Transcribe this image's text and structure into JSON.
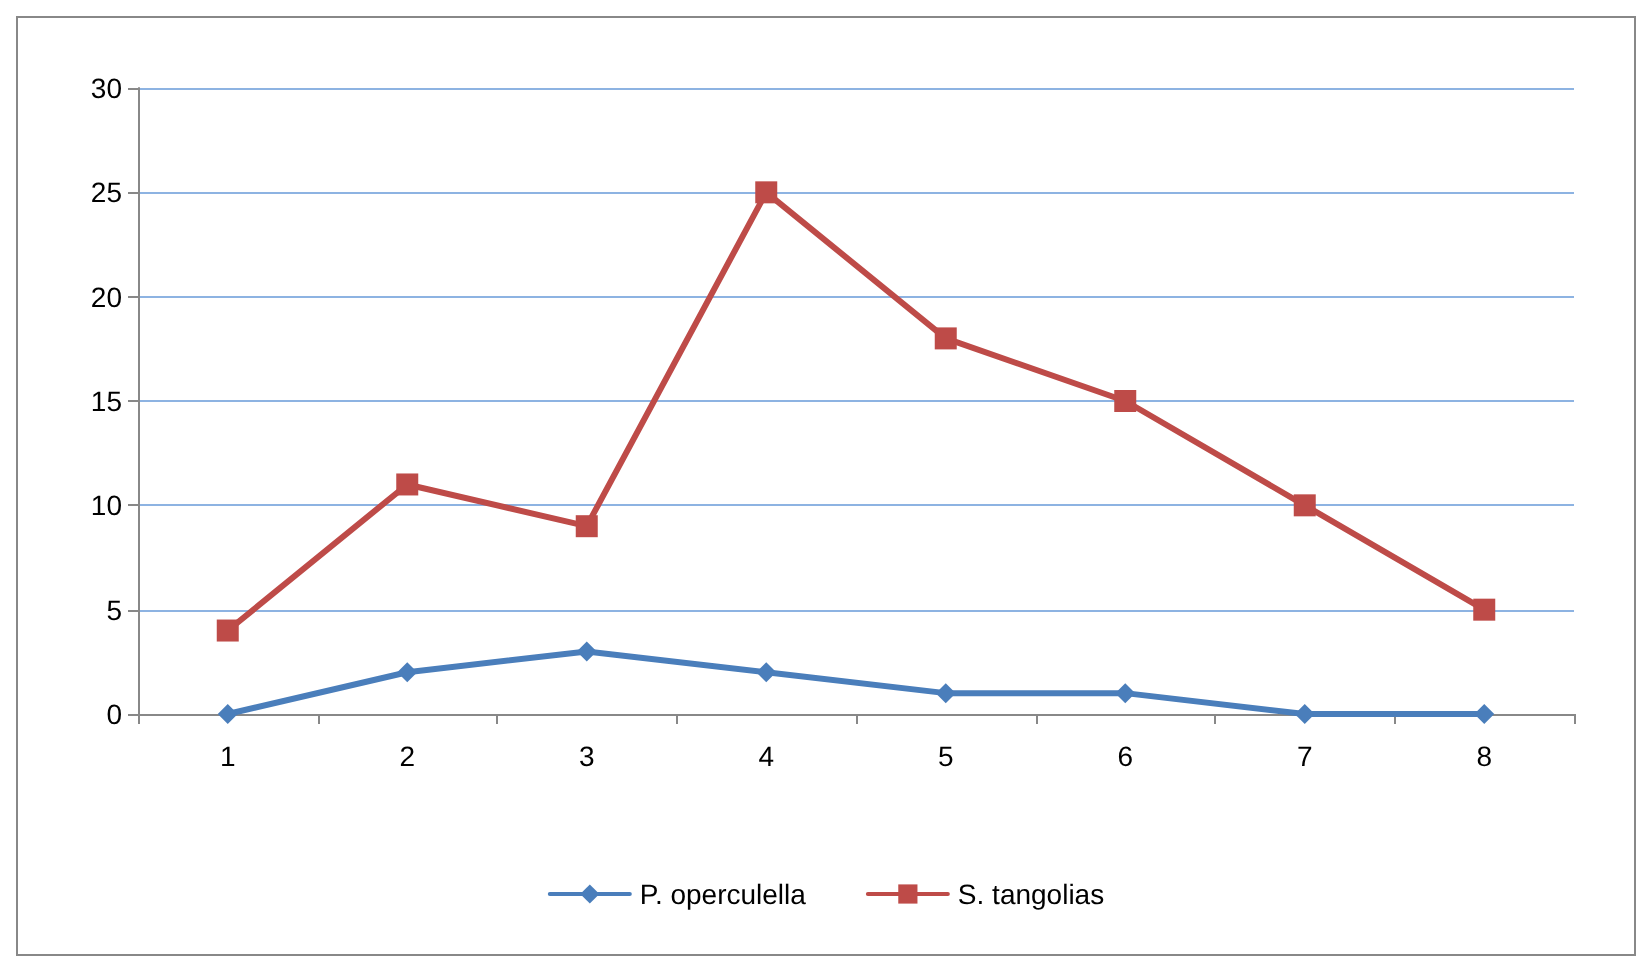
{
  "chart_data": {
    "type": "line",
    "categories": [
      "1",
      "2",
      "3",
      "4",
      "5",
      "6",
      "7",
      "8"
    ],
    "series": [
      {
        "name": "P. operculella",
        "color": "#4a7ebb",
        "marker": "diamond",
        "values": [
          0,
          2,
          3,
          2,
          1,
          1,
          0,
          0
        ]
      },
      {
        "name": "S. tangolias",
        "color": "#be4b48",
        "marker": "square",
        "values": [
          4,
          11,
          9,
          25,
          18,
          15,
          10,
          5
        ]
      }
    ],
    "ylim": [
      0,
      30
    ],
    "yticks": [
      0,
      5,
      10,
      15,
      20,
      25,
      30
    ],
    "grid": "y",
    "legend": "bottom",
    "line_style": "solid"
  }
}
